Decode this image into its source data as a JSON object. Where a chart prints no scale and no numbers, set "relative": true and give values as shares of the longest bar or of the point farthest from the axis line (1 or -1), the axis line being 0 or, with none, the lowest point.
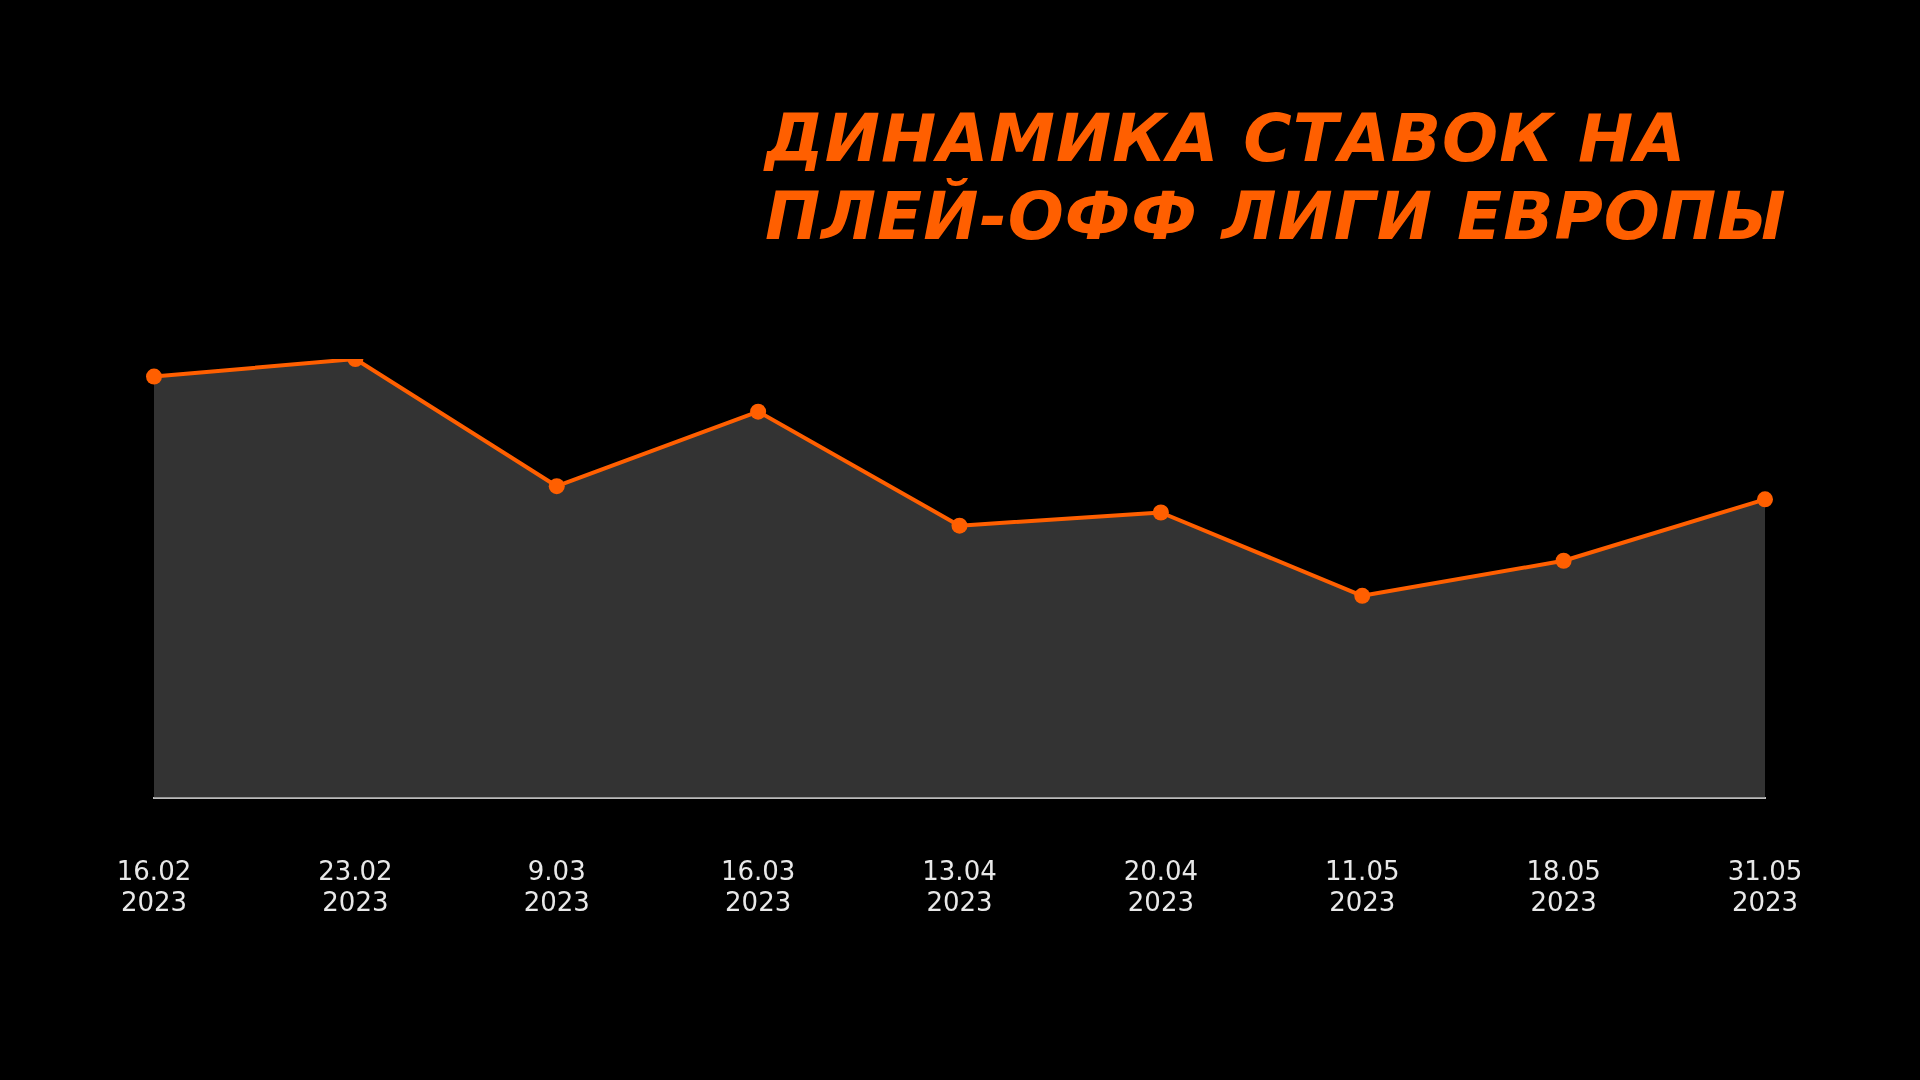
{
  "chart_data": {
    "type": "area",
    "title": "ДИНАМИКА СТАВОК НА\nПЛЕЙ-ОФФ ЛИГИ ЕВРОПЫ",
    "categories": [
      "16.02\n2023",
      "23.02\n2023",
      "9.03\n2023",
      "16.03\n2023",
      "13.04\n2023",
      "20.04\n2023",
      "11.05\n2023",
      "18.05\n2023",
      "31.05\n2023"
    ],
    "relative": true,
    "series": [
      {
        "color": "#ff5f00",
        "values": [
          0.96,
          1,
          0.71,
          0.88,
          0.62,
          0.65,
          0.46,
          0.54,
          0.68
        ]
      }
    ],
    "marker": "circle",
    "grid": false,
    "legend": false
  }
}
